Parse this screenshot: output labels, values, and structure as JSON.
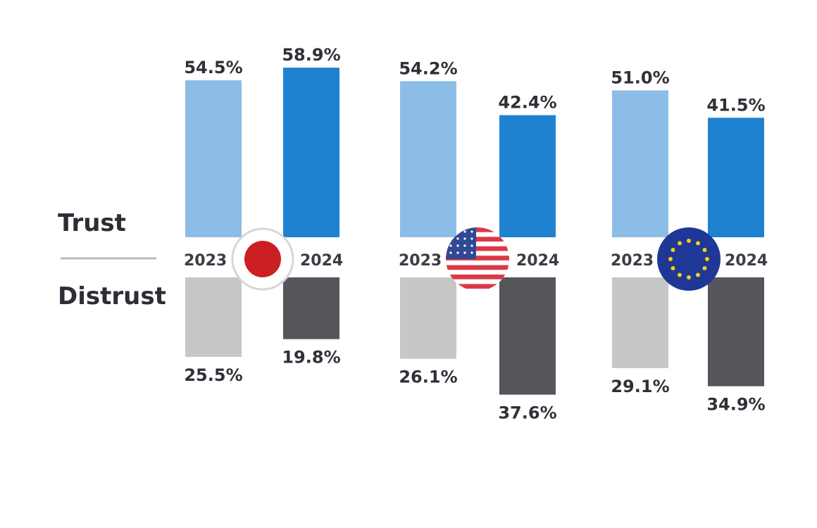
{
  "chart_data": {
    "type": "bar",
    "legend": {
      "upper": "Trust",
      "lower": "Distrust"
    },
    "groups": [
      {
        "flag": "japan-flag-icon",
        "years": [
          {
            "year": "2023",
            "trust": 54.5,
            "trust_label": "54.5%",
            "distrust": 25.5,
            "distrust_label": "25.5%"
          },
          {
            "year": "2024",
            "trust": 58.9,
            "trust_label": "58.9%",
            "distrust": 19.8,
            "distrust_label": "19.8%"
          }
        ]
      },
      {
        "flag": "usa-flag-icon",
        "years": [
          {
            "year": "2023",
            "trust": 54.2,
            "trust_label": "54.2%",
            "distrust": 26.1,
            "distrust_label": "26.1%"
          },
          {
            "year": "2024",
            "trust": 42.4,
            "trust_label": "42.4%",
            "distrust": 37.6,
            "distrust_label": "37.6%"
          }
        ]
      },
      {
        "flag": "eu-flag-icon",
        "years": [
          {
            "year": "2023",
            "trust": 51.0,
            "trust_label": "51.0%",
            "distrust": 29.1,
            "distrust_label": "29.1%"
          },
          {
            "year": "2024",
            "trust": 41.5,
            "trust_label": "41.5%",
            "distrust": 34.9,
            "distrust_label": "34.9%"
          }
        ]
      }
    ],
    "colors": {
      "trust_2023": "#8cbde6",
      "trust_2024": "#1f82d0",
      "distrust_2023": "#c6c7c9",
      "distrust_2024": "#55565b"
    }
  }
}
